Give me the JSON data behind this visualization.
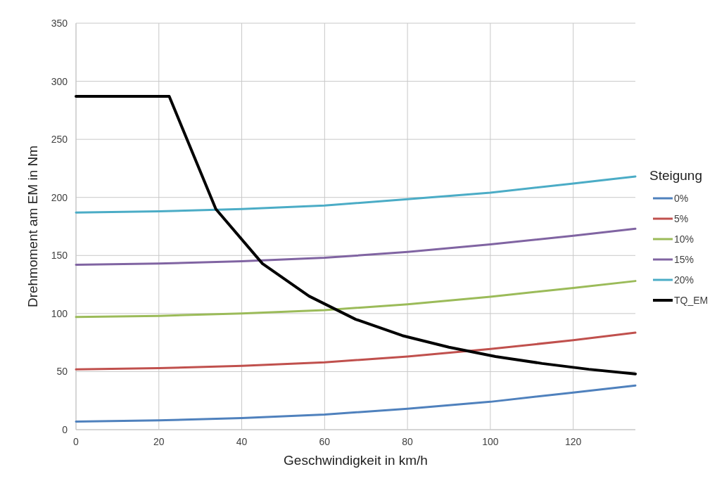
{
  "chart_data": {
    "type": "line",
    "xlabel": "Geschwindigkeit in km/h",
    "ylabel": "Drehmoment am EM in Nm",
    "legend_title": "Steigung",
    "legend": "right",
    "grid": true,
    "marker": "none",
    "xlim": [
      0,
      135
    ],
    "xticks": [
      0,
      20,
      40,
      60,
      80,
      100,
      120
    ],
    "ylim": [
      0,
      350
    ],
    "yticks": [
      0,
      50,
      100,
      150,
      200,
      250,
      300,
      350
    ],
    "x": [
      0,
      20,
      40,
      60,
      80,
      100,
      120,
      135
    ],
    "series": [
      {
        "name": "0%",
        "color": "#4f81bd",
        "values": [
          7,
          8,
          10,
          13,
          18,
          24,
          32,
          38
        ]
      },
      {
        "name": "5%",
        "color": "#c0504d",
        "values": [
          52,
          53,
          55,
          58,
          63,
          69.5,
          77,
          83.5
        ]
      },
      {
        "name": "10%",
        "color": "#9bbb59",
        "values": [
          97,
          98,
          100,
          103,
          108,
          114.5,
          122,
          128
        ]
      },
      {
        "name": "15%",
        "color": "#8064a2",
        "values": [
          142,
          143,
          145,
          148,
          153,
          159.5,
          167,
          173
        ]
      },
      {
        "name": "20%",
        "color": "#4bacc6",
        "values": [
          187,
          188,
          190,
          193,
          198.5,
          204,
          212,
          218
        ]
      },
      {
        "name": "TQ_EM",
        "color": "#000000",
        "x": [
          0,
          22.5,
          33.75,
          45,
          56.25,
          67.5,
          78.75,
          90,
          101.25,
          112.5,
          123.75,
          135
        ],
        "values": [
          287,
          287,
          190,
          143,
          115,
          95,
          81,
          71,
          63,
          57,
          52,
          48
        ]
      }
    ]
  }
}
